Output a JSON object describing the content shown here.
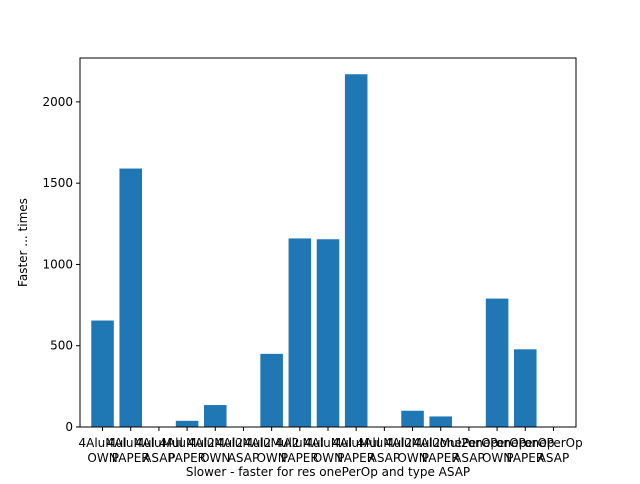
{
  "chart_data": {
    "type": "bar",
    "title": "",
    "xlabel": "Slower - faster for res onePerOp and type ASAP",
    "ylabel": "Faster ... times",
    "ylim": [
      0,
      2270
    ],
    "yticks": [
      0,
      500,
      1000,
      1500,
      2000
    ],
    "grid": false,
    "legend": "none",
    "bar_color": "#1f77b4",
    "categories": [
      [
        "4AluMul",
        "OWN"
      ],
      [
        "4AluMul",
        "PAPER"
      ],
      [
        "4AluMul",
        "ASAP"
      ],
      [
        "4AluMul2",
        "PAPER"
      ],
      [
        "4AluMul2",
        "OWN"
      ],
      [
        "4AluMul2",
        "ASAP"
      ],
      [
        "4AluMul2",
        "OWN"
      ],
      [
        "4AluMul",
        "PAPER"
      ],
      [
        "4AluMul",
        "OWN"
      ],
      [
        "4AluMul",
        "PAPER"
      ],
      [
        "4AluMul2",
        "ASAP"
      ],
      [
        "4AluMul2",
        "OWN"
      ],
      [
        "4AluMul2",
        "PAPER"
      ],
      [
        "onePerOp",
        "ASAP"
      ],
      [
        "onePerOp",
        "OWN"
      ],
      [
        "onePerOp",
        "PAPER"
      ],
      [
        "onePerOp",
        "ASAP"
      ]
    ],
    "values": [
      655,
      1590,
      0,
      38,
      135,
      0,
      450,
      1160,
      1155,
      2170,
      0,
      100,
      65,
      0,
      790,
      478,
      0
    ]
  }
}
